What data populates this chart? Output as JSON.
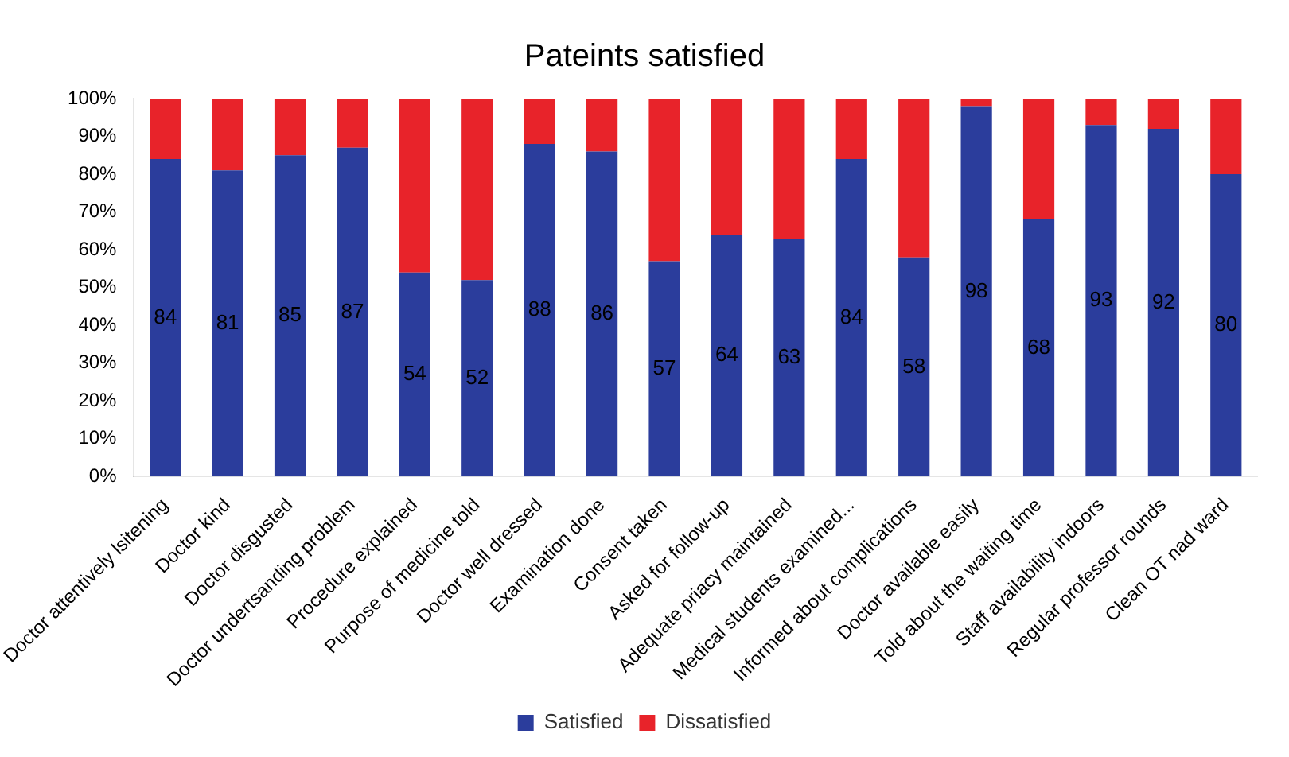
{
  "chart_data": {
    "type": "bar",
    "title": "Pateints satisfied",
    "stacked": true,
    "legend": "bottom",
    "categories": [
      "Doctor attentively lsitening",
      "Doctor kind",
      "Doctor disgusted",
      "Doctor undertsanding problem",
      "Procedure explained",
      "Purpose of medicine told",
      "Doctor well dressed",
      "Examination done",
      "Consent taken",
      "Asked for follow-up",
      "Adequate priacy maintained",
      "Medical students examined...",
      "Informed about complications",
      "Doctor available easily",
      "Told about the waiting time",
      "Staff availability indoors",
      "Regular professor rounds",
      "Clean OT nad ward"
    ],
    "series": [
      {
        "name": "Satisfied",
        "color": "#2b3d9c",
        "values": [
          84,
          81,
          85,
          87,
          54,
          52,
          88,
          86,
          57,
          64,
          63,
          84,
          58,
          98,
          68,
          93,
          92,
          80
        ],
        "value_labels": [
          "84",
          "81",
          "85",
          "87",
          "54",
          "52",
          "88",
          "86",
          "57",
          "64",
          "63",
          "84",
          "58",
          "98",
          "68",
          "93",
          "92",
          "80"
        ]
      },
      {
        "name": "Dissatisfied",
        "color": "#e8232a",
        "values": [
          16,
          19,
          15,
          13,
          46,
          48,
          12,
          14,
          43,
          36,
          37,
          16,
          42,
          2,
          32,
          7,
          8,
          20
        ]
      }
    ],
    "ylim": [
      0,
      100
    ],
    "yticks": [
      {
        "value": 0,
        "label": "0%"
      },
      {
        "value": 10,
        "label": "10%"
      },
      {
        "value": 20,
        "label": "20%"
      },
      {
        "value": 30,
        "label": "30%"
      },
      {
        "value": 40,
        "label": "40%"
      },
      {
        "value": 50,
        "label": "50%"
      },
      {
        "value": 60,
        "label": "60%"
      },
      {
        "value": 70,
        "label": "70%"
      },
      {
        "value": 80,
        "label": "80%"
      },
      {
        "value": 90,
        "label": "90%"
      },
      {
        "value": 100,
        "label": "100%"
      }
    ]
  }
}
